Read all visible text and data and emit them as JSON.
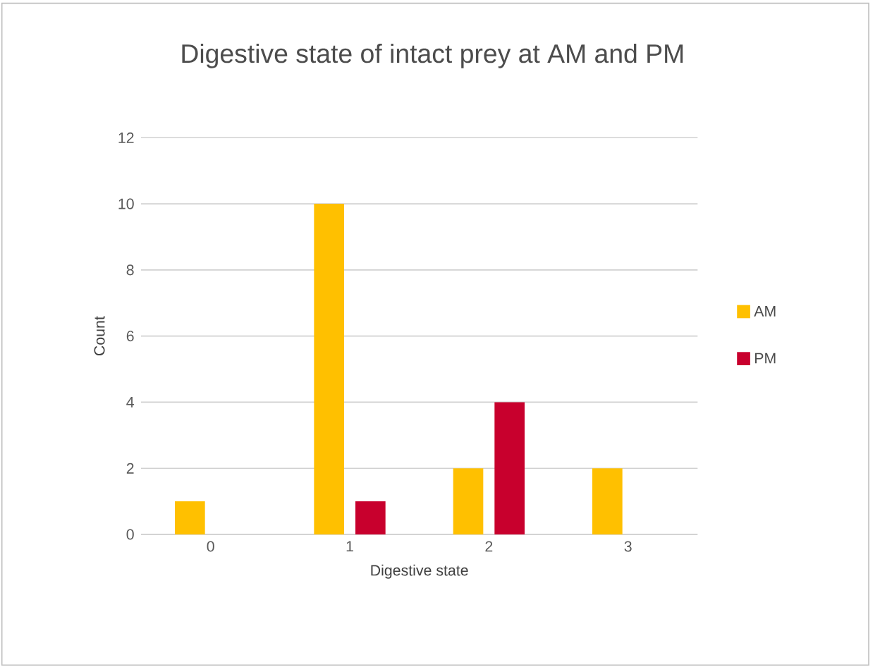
{
  "chart_data": {
    "type": "bar",
    "title": "Digestive state of intact prey at AM and PM",
    "xlabel": "Digestive state",
    "ylabel": "Count",
    "categories": [
      "0",
      "1",
      "2",
      "3"
    ],
    "series": [
      {
        "name": "AM",
        "color": "#ffc000",
        "values": [
          1,
          10,
          2,
          2
        ]
      },
      {
        "name": "PM",
        "color": "#c8002d",
        "values": [
          null,
          1,
          4,
          null
        ]
      }
    ],
    "ylim": [
      0,
      12
    ],
    "yticks": [
      0,
      2,
      4,
      6,
      8,
      10,
      12
    ],
    "grid": "y",
    "legend": "right"
  }
}
